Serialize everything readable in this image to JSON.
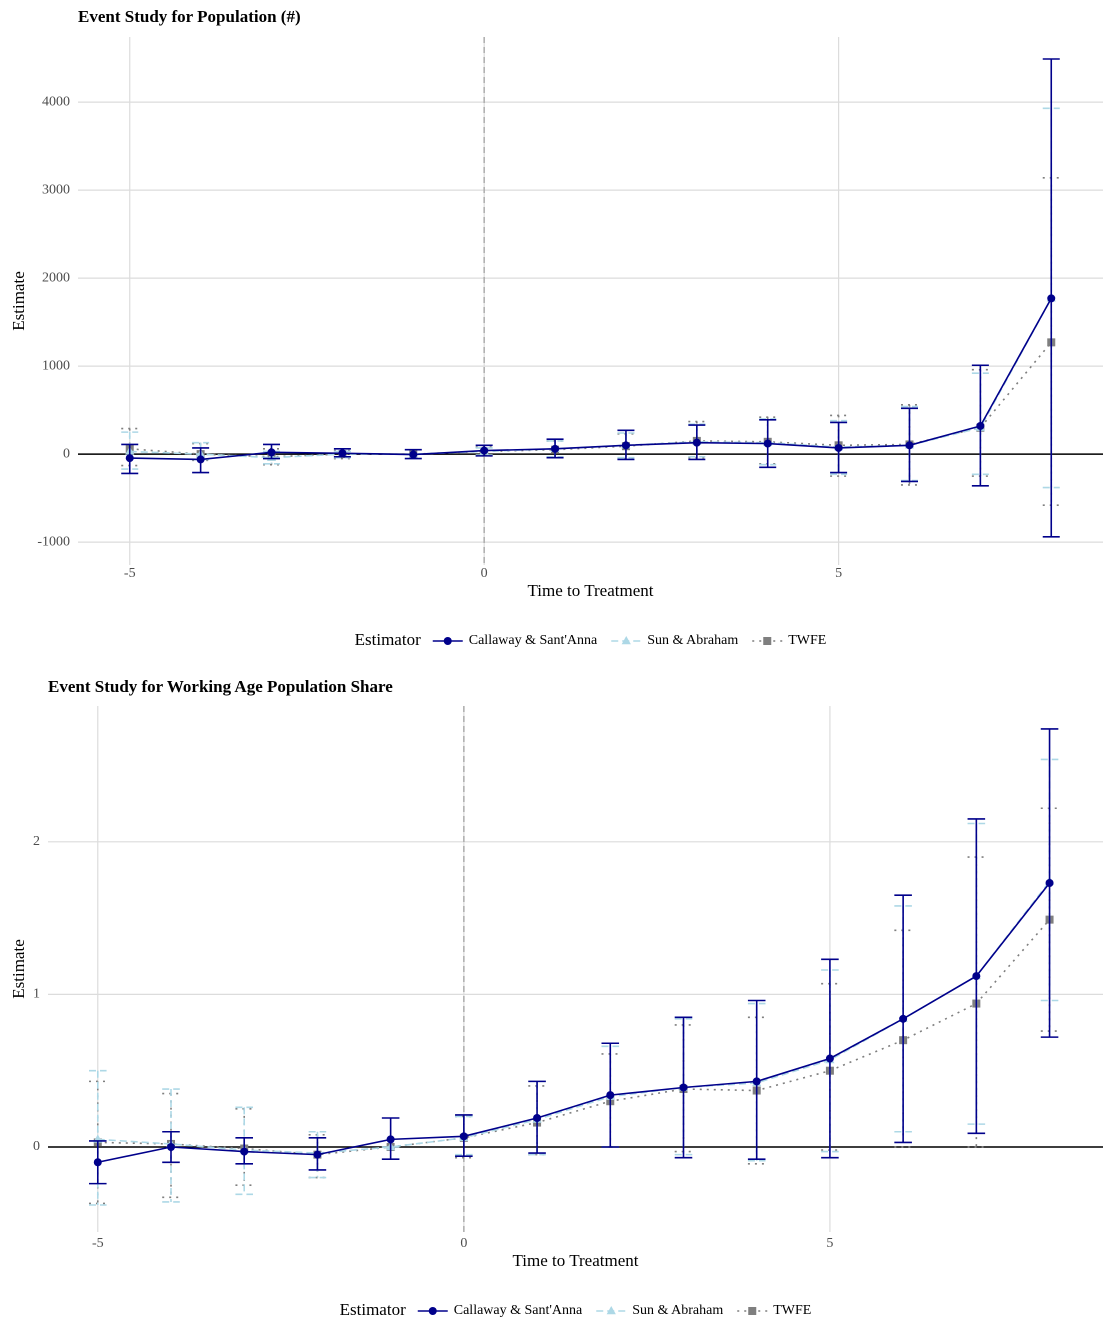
{
  "chart_data": [
    {
      "type": "line",
      "title": "Event Study for Population (#)",
      "xlabel": "Time to Treatment",
      "ylabel": "Estimate",
      "x": [
        -5,
        -4,
        -3,
        -2,
        -1,
        0,
        1,
        2,
        3,
        4,
        5,
        6,
        7,
        8
      ],
      "xlim": [
        -5.73,
        8.73
      ],
      "xticks": [
        -5,
        0,
        5
      ],
      "ylim": [
        -1260,
        4740
      ],
      "yticks": [
        -1000,
        0,
        1000,
        2000,
        3000,
        4000
      ],
      "grid": true,
      "vline": 0,
      "hline": 0,
      "legend_title": "Estimator",
      "legend_position": "bottom",
      "series": [
        {
          "name": "Callaway & Sant'Anna",
          "color": "#00008B",
          "linestyle": "solid",
          "marker": "circle",
          "values": [
            -45,
            -60,
            20,
            10,
            -5,
            40,
            60,
            100,
            130,
            120,
            70,
            100,
            320,
            1770
          ],
          "lower": [
            -220,
            -210,
            -50,
            -30,
            -50,
            -20,
            -40,
            -60,
            -60,
            -150,
            -210,
            -310,
            -360,
            -940
          ],
          "upper": [
            110,
            70,
            110,
            60,
            50,
            100,
            170,
            270,
            330,
            390,
            360,
            520,
            1010,
            4490
          ]
        },
        {
          "name": "Sun & Abraham",
          "color": "#ADD8E6",
          "linestyle": "dashed",
          "marker": "triangle",
          "values": [
            30,
            0,
            -40,
            0,
            0,
            30,
            60,
            100,
            140,
            130,
            80,
            100,
            300,
            1770
          ],
          "lower": [
            -170,
            -60,
            -110,
            -40,
            0,
            -10,
            -30,
            -40,
            -30,
            -120,
            -230,
            -300,
            -230,
            -380
          ],
          "upper": [
            250,
            130,
            30,
            30,
            0,
            70,
            150,
            240,
            340,
            400,
            380,
            540,
            920,
            3930
          ]
        },
        {
          "name": "TWFE",
          "color": "#7F7F7F",
          "linestyle": "dotted",
          "marker": "square",
          "values": [
            60,
            0,
            -30,
            0,
            0,
            30,
            50,
            90,
            150,
            140,
            100,
            110,
            300,
            1270
          ],
          "lower": [
            -130,
            -70,
            -120,
            -50,
            0,
            -20,
            -40,
            -50,
            -40,
            -110,
            -250,
            -350,
            -250,
            -580
          ],
          "upper": [
            290,
            120,
            60,
            40,
            0,
            80,
            150,
            230,
            370,
            420,
            440,
            560,
            960,
            3140
          ]
        }
      ]
    },
    {
      "type": "line",
      "title": "Event Study for Working Age Population Share",
      "xlabel": "Time to Treatment",
      "ylabel": "Estimate",
      "x": [
        -5,
        -4,
        -3,
        -2,
        -1,
        0,
        1,
        2,
        3,
        4,
        5,
        6,
        7,
        8
      ],
      "xlim": [
        -5.68,
        8.73
      ],
      "xticks": [
        -5,
        0,
        5
      ],
      "ylim": [
        -0.557,
        2.89
      ],
      "yticks": [
        0,
        1,
        2
      ],
      "grid": true,
      "vline": 0,
      "hline": 0,
      "legend_title": "Estimator",
      "legend_position": "bottom",
      "series": [
        {
          "name": "Callaway & Sant'Anna",
          "color": "#00008B",
          "linestyle": "solid",
          "marker": "circle",
          "values": [
            -0.1,
            0.0,
            -0.03,
            -0.05,
            0.05,
            0.07,
            0.19,
            0.34,
            0.39,
            0.43,
            0.58,
            0.84,
            1.12,
            1.73
          ],
          "lower": [
            -0.24,
            -0.1,
            -0.11,
            -0.15,
            -0.08,
            -0.06,
            -0.04,
            0.0,
            -0.07,
            -0.08,
            -0.07,
            0.03,
            0.09,
            0.72
          ],
          "upper": [
            0.04,
            0.1,
            0.06,
            0.06,
            0.19,
            0.21,
            0.43,
            0.68,
            0.85,
            0.96,
            1.23,
            1.65,
            2.15,
            2.74
          ]
        },
        {
          "name": "Sun & Abraham",
          "color": "#ADD8E6",
          "linestyle": "dashed",
          "marker": "triangle",
          "values": [
            0.05,
            0.02,
            -0.02,
            -0.04,
            0,
            0.06,
            0.18,
            0.33,
            0.39,
            0.42,
            0.57,
            0.84,
            1.12,
            1.74
          ],
          "lower": [
            -0.38,
            -0.36,
            -0.31,
            -0.2,
            0,
            -0.05,
            -0.05,
            0.0,
            -0.05,
            -0.09,
            -0.03,
            0.1,
            0.15,
            0.96
          ],
          "upper": [
            0.5,
            0.38,
            0.26,
            0.1,
            0,
            0.2,
            0.43,
            0.66,
            0.84,
            0.94,
            1.16,
            1.58,
            2.12,
            2.54
          ]
        },
        {
          "name": "TWFE",
          "color": "#7F7F7F",
          "linestyle": "dotted",
          "marker": "square",
          "values": [
            0.03,
            0.02,
            -0.01,
            -0.05,
            0,
            0.06,
            0.16,
            0.3,
            0.38,
            0.37,
            0.5,
            0.7,
            0.94,
            1.49
          ],
          "lower": [
            -0.37,
            -0.33,
            -0.25,
            -0.2,
            0,
            -0.07,
            -0.05,
            0.0,
            -0.03,
            -0.11,
            -0.02,
            0.0,
            0.0,
            0.76
          ],
          "upper": [
            0.43,
            0.35,
            0.25,
            0.08,
            0,
            0.2,
            0.4,
            0.61,
            0.8,
            0.85,
            1.07,
            1.42,
            1.9,
            2.22
          ]
        }
      ]
    }
  ]
}
